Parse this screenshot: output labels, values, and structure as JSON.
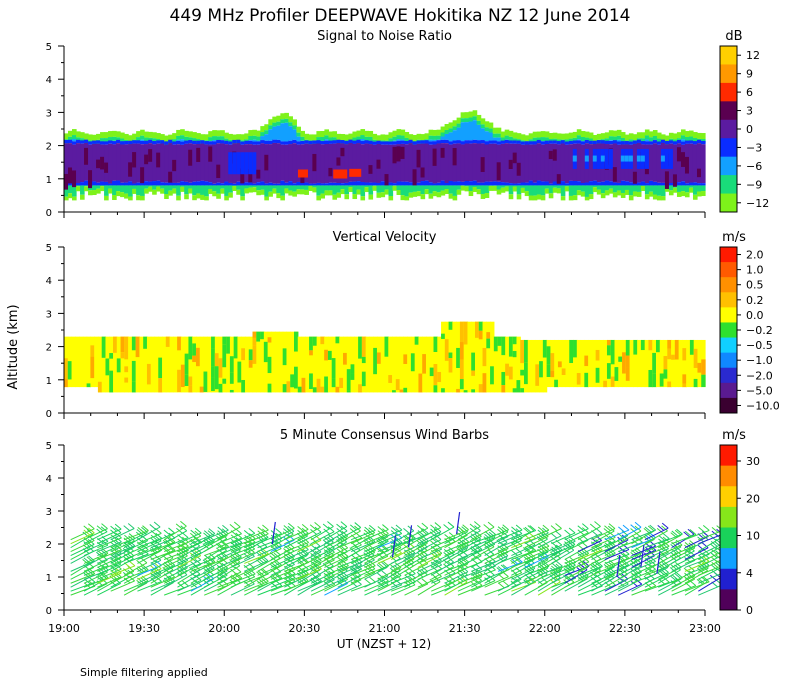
{
  "title": "449 MHz Profiler DEEPWAVE Hokitika NZ 12 June 2014",
  "ylabel": "Altitude (km)",
  "xlabel": "UT  (NZST + 12)",
  "note": "Simple filtering applied",
  "x_ticks": [
    "19:00",
    "19:30",
    "20:00",
    "20:30",
    "21:00",
    "21:30",
    "22:00",
    "22:30",
    "23:00"
  ],
  "x_range_hours": [
    19,
    23
  ],
  "chart_data": [
    {
      "type": "heatmap",
      "title": "Signal to Noise Ratio",
      "unit": "dB",
      "ylim": [
        0,
        5
      ],
      "y_ticks": [
        "0",
        "1",
        "2",
        "3",
        "4",
        "5"
      ],
      "colorbar": {
        "labels": [
          "12",
          "9",
          "6",
          "3",
          "0",
          "−3",
          "−6",
          "−9",
          "−12"
        ],
        "colors": [
          "#ffd000",
          "#ff9900",
          "#ff2a00",
          "#5a0050",
          "#5b1ba0",
          "#0a2cff",
          "#12a0ff",
          "#19dc7a",
          "#7ef21a"
        ]
      },
      "regions": [
        {
          "band": "green/cyan upper edge",
          "bottom_km": 2.1,
          "top_km": 2.45
        },
        {
          "band": "blue/purple core",
          "bottom_km": 0.8,
          "top_km": 2.15
        },
        {
          "band": "green lower edge",
          "bottom_km": 0.35,
          "top_km": 0.85
        }
      ]
    },
    {
      "type": "heatmap",
      "title": "Vertical Velocity",
      "unit": "m/s",
      "ylim": [
        0,
        5
      ],
      "y_ticks": [
        "0",
        "1",
        "2",
        "3",
        "4",
        "5"
      ],
      "colorbar": {
        "labels": [
          "2.0",
          "1.0",
          "0.5",
          "0.2",
          "0.0",
          "−0.2",
          "−0.5",
          "−1.0",
          "−2.0",
          "−5.0",
          "−10.0"
        ],
        "colors": [
          "#ff1a00",
          "#ff5a00",
          "#ff9000",
          "#ffc000",
          "#ffff00",
          "#2ee02e",
          "#10d0ff",
          "#1088ff",
          "#2a2ad0",
          "#5a1a90",
          "#3a0030"
        ]
      },
      "coverage": {
        "bottom_km": 0.75,
        "top_km": 2.3,
        "top_peak_km": 2.75
      }
    },
    {
      "type": "wind_barbs",
      "title": "5 Minute Consensus Wind Barbs",
      "unit": "m/s",
      "ylim": [
        0,
        5
      ],
      "y_ticks": [
        "0",
        "1",
        "2",
        "3",
        "4",
        "5"
      ],
      "interval_minutes": 5,
      "altitude_range_km": [
        0.4,
        2.3
      ],
      "typical_speed_ms": 12,
      "colorbar": {
        "labels": [
          "30",
          "20",
          "10",
          "4",
          "0"
        ],
        "colors": [
          "#ff1a00",
          "#ff8c00",
          "#ffd000",
          "#86e61a",
          "#19d25a",
          "#10a0ff",
          "#2020d0",
          "#50005a"
        ]
      }
    }
  ]
}
